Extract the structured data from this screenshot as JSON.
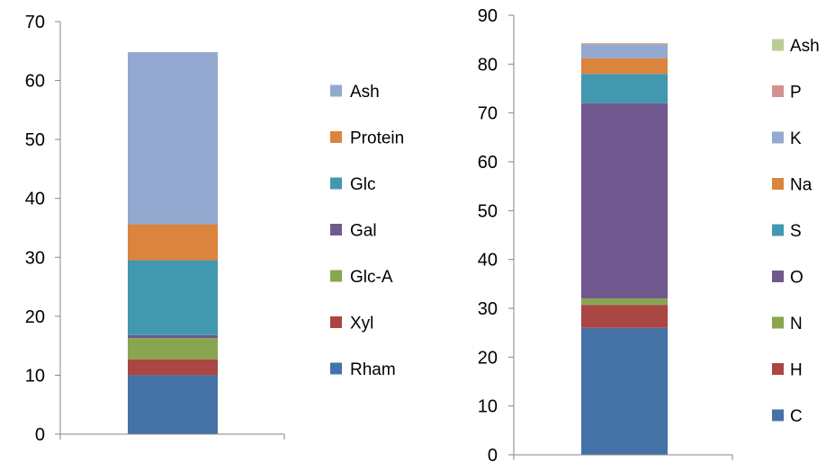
{
  "chart_data": [
    {
      "type": "bar",
      "stacked": true,
      "categories": [
        ""
      ],
      "title": "",
      "xlabel": "",
      "ylabel": "",
      "ylim": [
        0,
        70
      ],
      "yticks": [
        0,
        10,
        20,
        30,
        40,
        50,
        60,
        70
      ],
      "legend_position": "right",
      "grid": false,
      "series": [
        {
          "name": "Rham",
          "values": [
            10.0
          ],
          "color": "#4572A7"
        },
        {
          "name": "Xyl",
          "values": [
            2.7
          ],
          "color": "#AA4643"
        },
        {
          "name": "Glc-A",
          "values": [
            3.6
          ],
          "color": "#89A54E"
        },
        {
          "name": "Gal",
          "values": [
            0.5
          ],
          "color": "#71588F"
        },
        {
          "name": "Glc",
          "values": [
            12.7
          ],
          "color": "#4198AF"
        },
        {
          "name": "Protein",
          "values": [
            6.1
          ],
          "color": "#DB843D"
        },
        {
          "name": "Ash",
          "values": [
            29.2
          ],
          "color": "#93A9CF"
        }
      ]
    },
    {
      "type": "bar",
      "stacked": true,
      "categories": [
        ""
      ],
      "title": "",
      "xlabel": "",
      "ylabel": "",
      "ylim": [
        0,
        90
      ],
      "yticks": [
        0,
        10,
        20,
        30,
        40,
        50,
        60,
        70,
        80,
        90
      ],
      "legend_position": "right",
      "grid": false,
      "series": [
        {
          "name": "C",
          "values": [
            26.0
          ],
          "color": "#4572A7"
        },
        {
          "name": "H",
          "values": [
            4.7
          ],
          "color": "#AA4643"
        },
        {
          "name": "N",
          "values": [
            1.3
          ],
          "color": "#89A54E"
        },
        {
          "name": "O",
          "values": [
            40.0
          ],
          "color": "#71588F"
        },
        {
          "name": "S",
          "values": [
            6.0
          ],
          "color": "#4198AF"
        },
        {
          "name": "Na",
          "values": [
            3.2
          ],
          "color": "#DB843D"
        },
        {
          "name": "K",
          "values": [
            2.8
          ],
          "color": "#93A9CF"
        },
        {
          "name": "P",
          "values": [
            0.2
          ],
          "color": "#D19392"
        },
        {
          "name": "Ash",
          "values": [
            0.1
          ],
          "color": "#B9CD96"
        }
      ]
    }
  ]
}
